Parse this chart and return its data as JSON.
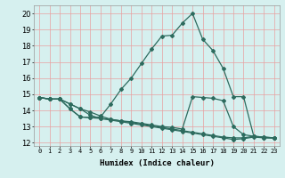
{
  "xlabel": "Humidex (Indice chaleur)",
  "bg_color": "#d6f0ef",
  "line_color": "#2d6b5e",
  "grid_color": "#e8a0a0",
  "xlim": [
    -0.5,
    23.5
  ],
  "ylim": [
    11.8,
    20.5
  ],
  "xtick_labels": [
    "0",
    "1",
    "2",
    "3",
    "4",
    "5",
    "6",
    "7",
    "8",
    "9",
    "10",
    "11",
    "12",
    "13",
    "14",
    "15",
    "16",
    "17",
    "18",
    "19",
    "20",
    "21",
    "22",
    "23"
  ],
  "ytick_values": [
    12,
    13,
    14,
    15,
    16,
    17,
    18,
    19,
    20
  ],
  "line1_x": [
    0,
    1,
    2,
    3,
    4,
    5,
    6,
    7,
    8,
    9,
    10,
    11,
    12,
    13,
    14,
    15,
    16,
    17,
    18,
    19,
    20,
    21,
    22,
    23
  ],
  "line1_y": [
    14.8,
    14.7,
    14.7,
    14.1,
    13.6,
    13.55,
    13.6,
    14.4,
    15.3,
    16.0,
    16.9,
    17.8,
    18.6,
    18.65,
    19.4,
    20.0,
    18.4,
    17.7,
    16.6,
    14.85,
    14.85,
    12.4,
    12.3,
    12.3
  ],
  "line2_x": [
    0,
    1,
    2,
    3,
    4,
    5,
    6,
    7,
    8,
    9,
    10,
    11,
    12,
    13,
    14,
    15,
    16,
    17,
    18,
    19,
    20,
    21,
    22,
    23
  ],
  "line2_y": [
    14.8,
    14.7,
    14.7,
    14.1,
    13.6,
    13.55,
    13.5,
    13.45,
    13.35,
    13.3,
    13.2,
    13.1,
    13.0,
    12.95,
    12.85,
    14.85,
    14.8,
    14.75,
    14.6,
    13.0,
    12.5,
    12.4,
    12.35,
    12.3
  ],
  "line3_x": [
    0,
    1,
    2,
    3,
    4,
    5,
    6,
    7,
    8,
    9,
    10,
    11,
    12,
    13,
    14,
    15,
    16,
    17,
    18,
    19,
    20,
    21,
    22,
    23
  ],
  "line3_y": [
    14.8,
    14.7,
    14.7,
    14.4,
    14.1,
    13.9,
    13.65,
    13.45,
    13.35,
    13.25,
    13.15,
    13.05,
    12.95,
    12.85,
    12.75,
    12.65,
    12.55,
    12.45,
    12.35,
    12.3,
    12.3,
    12.4,
    12.35,
    12.3
  ],
  "line4_x": [
    0,
    1,
    2,
    3,
    4,
    5,
    6,
    7,
    8,
    9,
    10,
    11,
    12,
    13,
    14,
    15,
    16,
    17,
    18,
    19,
    20,
    21,
    22,
    23
  ],
  "line4_y": [
    14.8,
    14.7,
    14.7,
    14.4,
    14.1,
    13.7,
    13.5,
    13.4,
    13.3,
    13.2,
    13.1,
    13.0,
    12.9,
    12.8,
    12.7,
    12.6,
    12.5,
    12.4,
    12.3,
    12.2,
    12.25,
    12.35,
    12.3,
    12.3
  ]
}
